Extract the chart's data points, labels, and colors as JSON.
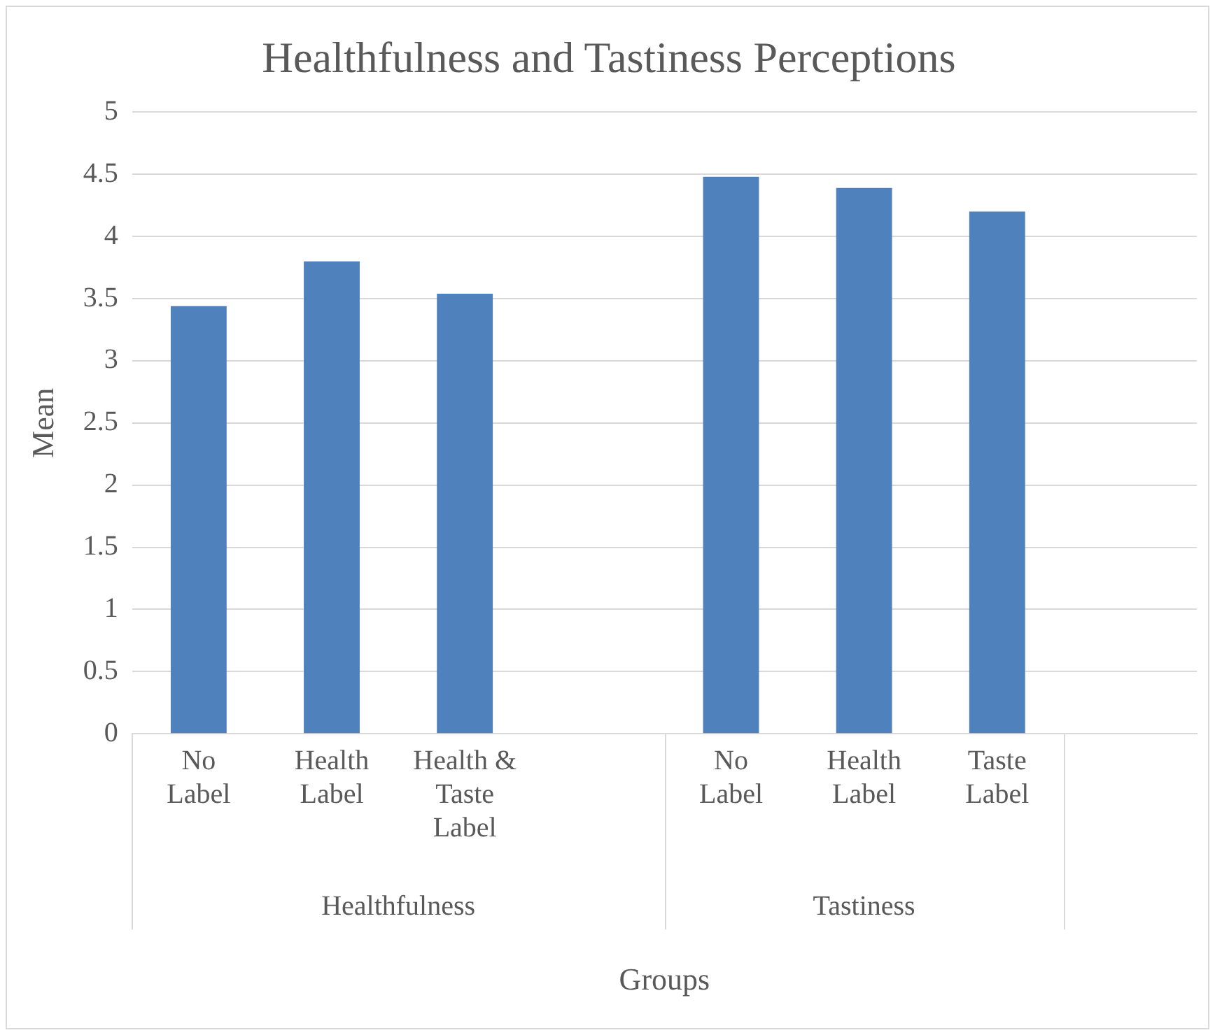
{
  "chart_data": {
    "type": "bar",
    "title": "Healthfulness and Tastiness Perceptions",
    "xlabel": "Groups",
    "ylabel": "Mean",
    "categories": [
      "No Label",
      "Health Label",
      "Health & Taste Label",
      null,
      "No Label",
      "Health Label",
      "Taste Label",
      null
    ],
    "values": [
      3.44,
      3.8,
      3.54,
      null,
      4.48,
      4.39,
      4.2,
      null
    ],
    "color": "#4f81bd",
    "annotations": [
      "Healthfulness",
      "Tastiness"
    ],
    "ylim": [
      0,
      5
    ],
    "yticks": [
      0,
      0.5,
      1,
      1.5,
      2,
      2.5,
      3,
      3.5,
      4,
      4.5,
      5
    ],
    "grid": "y",
    "legend": false
  }
}
